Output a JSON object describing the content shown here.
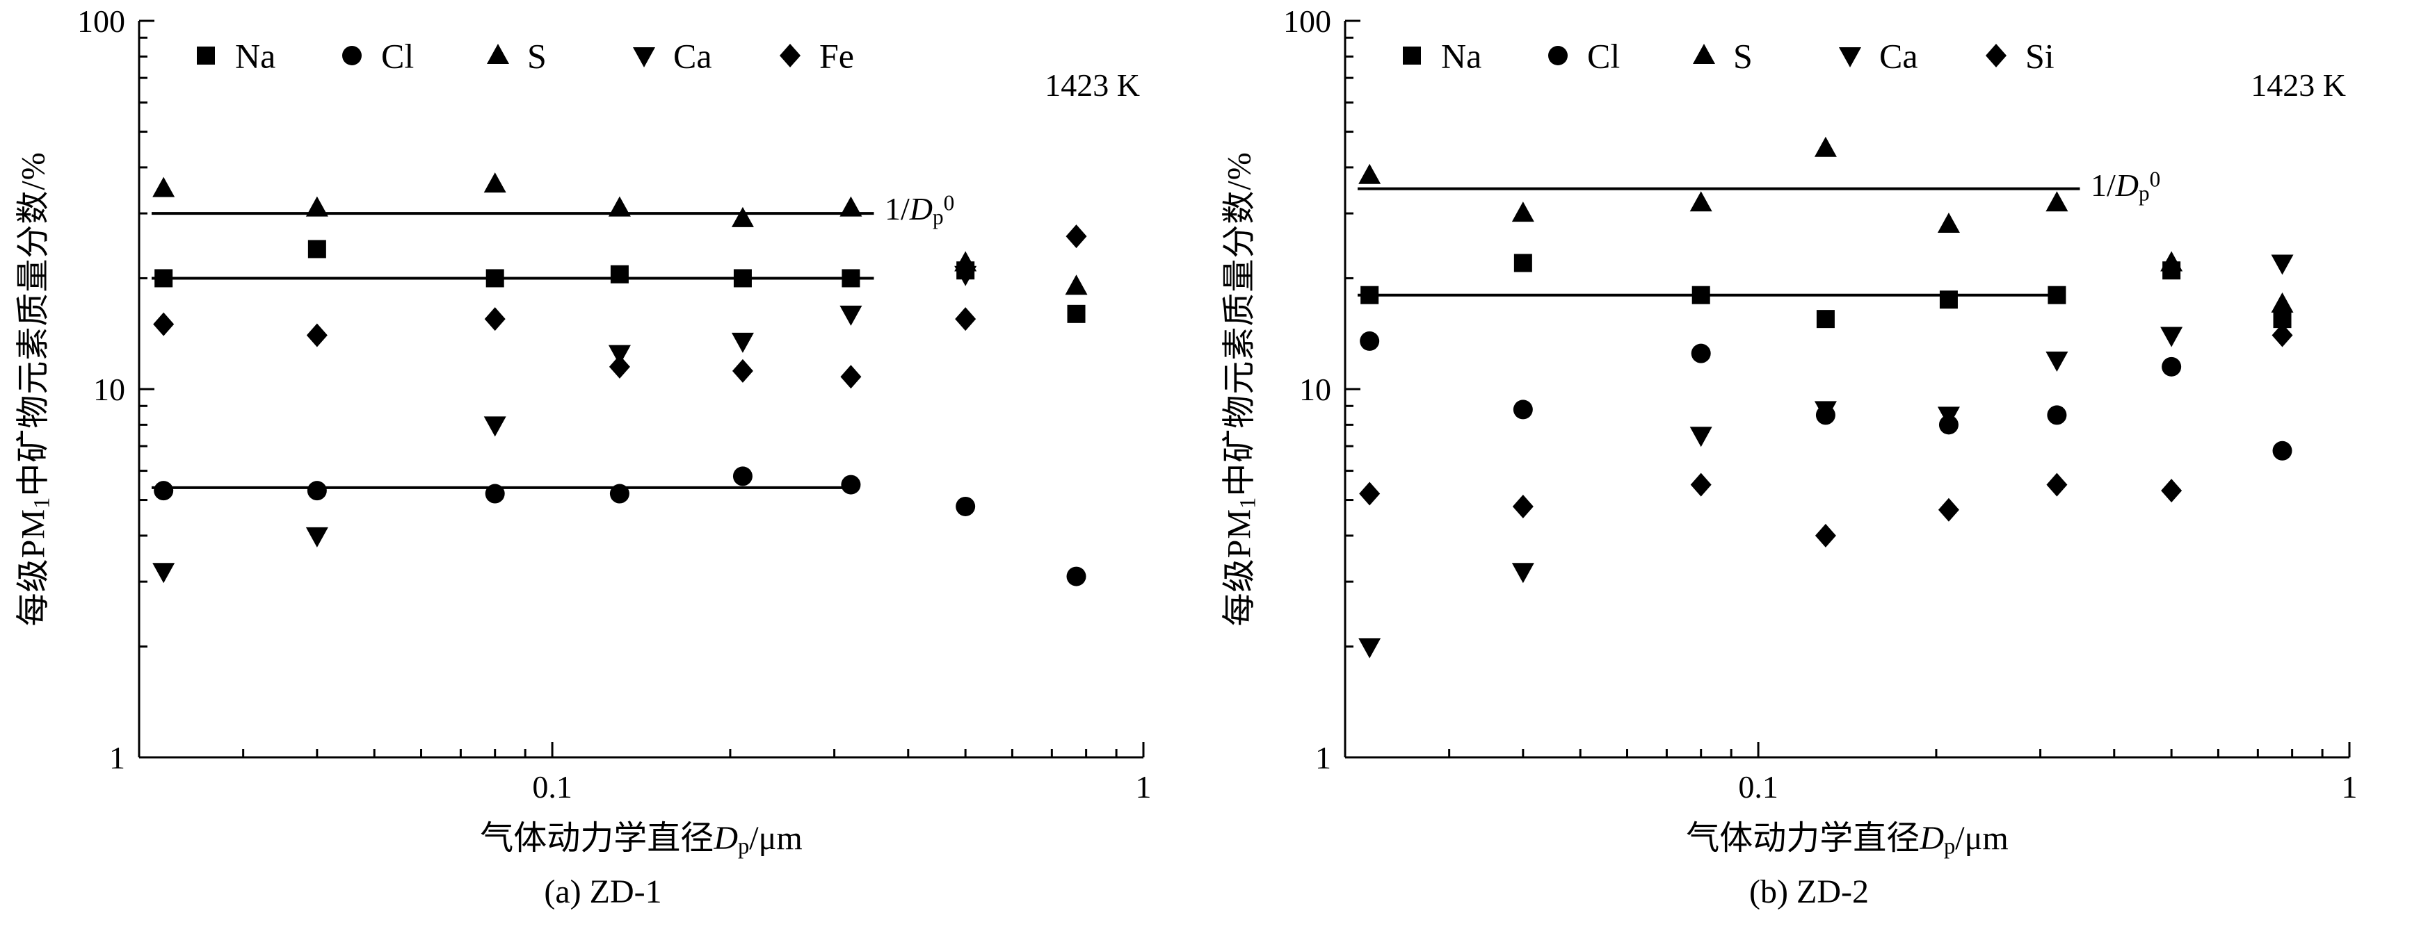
{
  "figure": {
    "marker_color": "#000000",
    "axis_color": "#000000"
  },
  "chart_data": [
    {
      "type": "scatter",
      "caption": "(a)  ZD-1",
      "temp_label": "1423 K",
      "line_label_parts": [
        "1/",
        "D",
        "p",
        "0"
      ],
      "xlabel_parts": [
        "气体动力学直径",
        "D",
        "p",
        "/μm"
      ],
      "ylabel_parts": [
        "每级PM",
        "1",
        "中矿物元素质量分数/%"
      ],
      "x_scale": "log",
      "y_scale": "log",
      "xlim": [
        0.02,
        1
      ],
      "ylim": [
        1,
        100
      ],
      "grid": false,
      "legend_position": "top-inside",
      "marker_color": "#000000",
      "x_ticks": [
        {
          "v": 0.1,
          "label": "0.1"
        },
        {
          "v": 1,
          "label": "1"
        }
      ],
      "y_ticks": [
        {
          "v": 1,
          "label": "1"
        },
        {
          "v": 10,
          "label": "10"
        },
        {
          "v": 100,
          "label": "100"
        }
      ],
      "x": [
        0.022,
        0.04,
        0.08,
        0.13,
        0.21,
        0.32,
        0.5,
        0.77
      ],
      "series": [
        {
          "name": "Na",
          "marker": "square",
          "values": [
            20,
            24,
            20,
            20.5,
            20,
            20,
            21,
            16
          ]
        },
        {
          "name": "Cl",
          "marker": "circle",
          "values": [
            5.3,
            5.3,
            5.2,
            5.2,
            5.8,
            5.5,
            4.8,
            3.1
          ]
        },
        {
          "name": "S",
          "marker": "triangle-up",
          "values": [
            35,
            31,
            36,
            31,
            29,
            31,
            22,
            19
          ]
        },
        {
          "name": "Ca",
          "marker": "triangle-down",
          "values": [
            3.2,
            4,
            8,
            12.5,
            13.5,
            16,
            20.5,
            null
          ]
        },
        {
          "name": "Fe",
          "marker": "diamond",
          "values": [
            15,
            14,
            15.5,
            11.5,
            11.2,
            10.8,
            15.5,
            26
          ]
        }
      ],
      "fit_lines": [
        {
          "y": 30,
          "x1": 0.021,
          "x2": 0.35
        },
        {
          "y": 20,
          "x1": 0.021,
          "x2": 0.35
        },
        {
          "y": 5.4,
          "x1": 0.021,
          "x2": 0.33
        }
      ]
    },
    {
      "type": "scatter",
      "caption": "(b)  ZD-2",
      "temp_label": "1423 K",
      "line_label_parts": [
        "1/",
        "D",
        "p",
        "0"
      ],
      "xlabel_parts": [
        "气体动力学直径",
        "D",
        "p",
        "/μm"
      ],
      "ylabel_parts": [
        "每级PM",
        "1",
        "中矿物元素质量分数/%"
      ],
      "x_scale": "log",
      "y_scale": "log",
      "xlim": [
        0.02,
        1
      ],
      "ylim": [
        1,
        100
      ],
      "grid": false,
      "legend_position": "top-inside",
      "marker_color": "#000000",
      "x_ticks": [
        {
          "v": 0.1,
          "label": "0.1"
        },
        {
          "v": 1,
          "label": "1"
        }
      ],
      "y_ticks": [
        {
          "v": 1,
          "label": "1"
        },
        {
          "v": 10,
          "label": "10"
        },
        {
          "v": 100,
          "label": "100"
        }
      ],
      "x": [
        0.022,
        0.04,
        0.08,
        0.13,
        0.21,
        0.32,
        0.5,
        0.77
      ],
      "series": [
        {
          "name": "Na",
          "marker": "square",
          "values": [
            18,
            22,
            18,
            15.5,
            17.5,
            18,
            21,
            15.5
          ]
        },
        {
          "name": "Cl",
          "marker": "circle",
          "values": [
            13.5,
            8.8,
            12.5,
            8.5,
            8,
            8.5,
            11.5,
            6.8
          ]
        },
        {
          "name": "S",
          "marker": "triangle-up",
          "values": [
            38,
            30,
            32,
            45,
            28,
            32,
            22,
            17
          ]
        },
        {
          "name": "Ca",
          "marker": "triangle-down",
          "values": [
            2,
            3.2,
            7.5,
            8.8,
            8.5,
            12,
            14,
            22
          ]
        },
        {
          "name": "Si",
          "marker": "diamond",
          "values": [
            5.2,
            4.8,
            5.5,
            4,
            4.7,
            5.5,
            5.3,
            14
          ]
        }
      ],
      "fit_lines": [
        {
          "y": 35,
          "x1": 0.021,
          "x2": 0.35
        },
        {
          "y": 18,
          "x1": 0.021,
          "x2": 0.33
        }
      ]
    }
  ]
}
